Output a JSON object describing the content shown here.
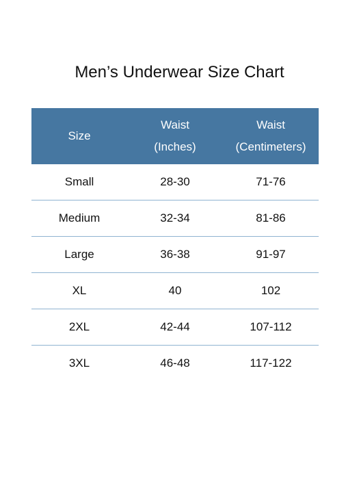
{
  "title": "Men’s Underwear Size Chart",
  "table": {
    "header": [
      [
        "Size"
      ],
      [
        "Waist",
        "(Inches)"
      ],
      [
        "Waist",
        "(Centimeters)"
      ]
    ],
    "rows": [
      [
        "Small",
        "28-30",
        "71-76"
      ],
      [
        "Medium",
        "32-34",
        "81-86"
      ],
      [
        "Large",
        "36-38",
        "91-97"
      ],
      [
        "XL",
        "40",
        "102"
      ],
      [
        "2XL",
        "42-44",
        "107-112"
      ],
      [
        "3XL",
        "46-48",
        "117-122"
      ]
    ]
  }
}
